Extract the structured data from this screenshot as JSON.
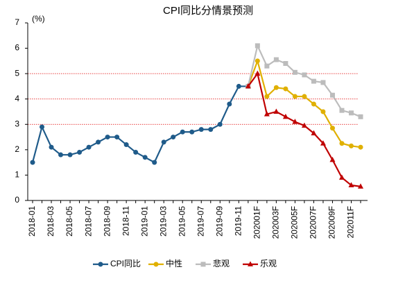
{
  "chart_data": {
    "type": "line",
    "title": "CPI同比分情景预测",
    "y_unit": "(%)",
    "categories": [
      "2018-01",
      null,
      "2018-03",
      null,
      "2018-05",
      null,
      "2018-07",
      null,
      "2018-09",
      null,
      "2018-11",
      null,
      "2019-01",
      null,
      "2019-03",
      null,
      "2019-05",
      null,
      "2019-07",
      null,
      "2019-09",
      null,
      "2019-11",
      null,
      "202001F",
      null,
      "202003F",
      null,
      "202005F",
      null,
      "202007F",
      null,
      "202009F",
      null,
      "202011F",
      null
    ],
    "series": [
      {
        "name": "CPI同比",
        "color": "#1f5b8a",
        "marker": "circle",
        "values": [
          1.5,
          2.9,
          2.1,
          1.8,
          1.8,
          1.9,
          2.1,
          2.3,
          2.5,
          2.5,
          2.2,
          1.9,
          1.7,
          1.5,
          2.3,
          2.5,
          2.7,
          2.7,
          2.8,
          2.8,
          3.0,
          3.8,
          4.5,
          4.5,
          null,
          null,
          null,
          null,
          null,
          null,
          null,
          null,
          null,
          null,
          null,
          null
        ]
      },
      {
        "name": "中性",
        "color": "#e0b000",
        "marker": "circle",
        "values": [
          null,
          null,
          null,
          null,
          null,
          null,
          null,
          null,
          null,
          null,
          null,
          null,
          null,
          null,
          null,
          null,
          null,
          null,
          null,
          null,
          null,
          null,
          null,
          4.5,
          5.5,
          4.1,
          4.45,
          4.4,
          4.1,
          4.1,
          3.8,
          3.5,
          2.85,
          2.25,
          2.15,
          2.1
        ]
      },
      {
        "name": "悲观",
        "color": "#bcbcbc",
        "marker": "square",
        "values": [
          null,
          null,
          null,
          null,
          null,
          null,
          null,
          null,
          null,
          null,
          null,
          null,
          null,
          null,
          null,
          null,
          null,
          null,
          null,
          null,
          null,
          null,
          null,
          4.5,
          6.1,
          5.3,
          5.55,
          5.4,
          5.05,
          4.95,
          4.7,
          4.65,
          4.15,
          3.55,
          3.45,
          3.3
        ]
      },
      {
        "name": "乐观",
        "color": "#c00000",
        "marker": "triangle",
        "values": [
          null,
          null,
          null,
          null,
          null,
          null,
          null,
          null,
          null,
          null,
          null,
          null,
          null,
          null,
          null,
          null,
          null,
          null,
          null,
          null,
          null,
          null,
          null,
          4.5,
          5.0,
          3.4,
          3.5,
          3.3,
          3.1,
          2.95,
          2.65,
          2.25,
          1.6,
          0.9,
          0.6,
          0.55
        ]
      }
    ],
    "ylim": [
      0,
      7
    ],
    "yticks": [
      0,
      1,
      2,
      3,
      4,
      5,
      6,
      7
    ],
    "grid_lines": [
      3,
      4,
      5
    ],
    "grid_color": "#e00000",
    "legend": "bottom"
  }
}
